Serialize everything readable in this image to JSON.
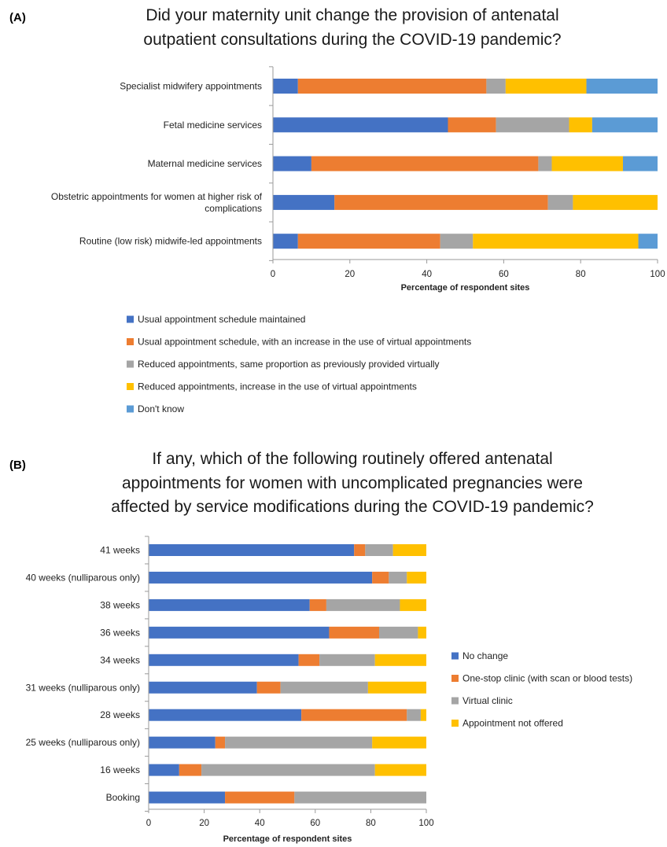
{
  "colors": {
    "blue": "#4472C4",
    "orange": "#ED7D31",
    "gray": "#A5A5A5",
    "yellow": "#FFC000",
    "lightblue": "#5B9BD5",
    "axis": "#9a9a9a"
  },
  "chart_data": [
    {
      "type": "bar",
      "orientation": "horizontal",
      "stacked": true,
      "panel": "(A)",
      "title": [
        "Did your maternity unit change the provision of antenatal",
        "outpatient consultations  during the COVID-19 pandemic?"
      ],
      "xlabel": "Percentage of respondent sites",
      "xlim": [
        0,
        100
      ],
      "xticks": [
        0,
        20,
        40,
        60,
        80,
        100
      ],
      "categories": [
        [
          "Specialist midwifery appointments"
        ],
        [
          "Fetal medicine services"
        ],
        [
          "Maternal medicine services"
        ],
        [
          "Obstetric appointments for women at higher risk of",
          "complications"
        ],
        [
          "Routine (low risk) midwife-led appointments"
        ]
      ],
      "series": [
        {
          "name": "Usual appointment schedule maintained",
          "color": "blue",
          "values": [
            6.5,
            45.5,
            10,
            16,
            6.5
          ]
        },
        {
          "name": "Usual appointment schedule, with an increase in the use of virtual appointments",
          "color": "orange",
          "values": [
            49,
            12.5,
            59,
            55.5,
            37
          ]
        },
        {
          "name": "Reduced appointments, same proportion as previously provided virtually",
          "color": "gray",
          "values": [
            5,
            19,
            3.5,
            6.5,
            8.5
          ]
        },
        {
          "name": "Reduced appointments, increase in the use of virtual appointments",
          "color": "yellow",
          "values": [
            21,
            6,
            18.5,
            22,
            43
          ]
        },
        {
          "name": "Don't know",
          "color": "lightblue",
          "values": [
            18.5,
            17,
            9,
            0,
            5
          ]
        }
      ],
      "legend_position": "bottom"
    },
    {
      "type": "bar",
      "orientation": "horizontal",
      "stacked": true,
      "panel": "(B)",
      "title": [
        "If any, which of the following routinely offered antenatal",
        "appointments for women with uncomplicated pregnancies were",
        "affected by service modifications during the COVID-19 pandemic?"
      ],
      "xlabel": "Percentage of respondent sites",
      "xlim": [
        0,
        100
      ],
      "xticks": [
        0,
        20,
        40,
        60,
        80,
        100
      ],
      "categories": [
        [
          "41 weeks"
        ],
        [
          "40 weeks (nulliparous only)"
        ],
        [
          "38 weeks"
        ],
        [
          "36 weeks"
        ],
        [
          "34 weeks"
        ],
        [
          "31 weeks (nulliparous only)"
        ],
        [
          "28 weeks"
        ],
        [
          "25 weeks (nulliparous only)"
        ],
        [
          "16 weeks"
        ],
        [
          "Booking"
        ]
      ],
      "series": [
        {
          "name": "No change",
          "color": "blue",
          "values": [
            74,
            80.5,
            58,
            65,
            54,
            39,
            55,
            24,
            11,
            27.5
          ]
        },
        {
          "name": "One-stop clinic (with scan or blood tests)",
          "color": "orange",
          "values": [
            4,
            6,
            6,
            18,
            7.5,
            8.5,
            38,
            3.5,
            8,
            25
          ]
        },
        {
          "name": "Virtual clinic",
          "color": "gray",
          "values": [
            10,
            6.5,
            26.5,
            14,
            20,
            31.5,
            5,
            53,
            62.5,
            47.5
          ]
        },
        {
          "name": "Appointment not offered",
          "color": "yellow",
          "values": [
            12,
            7,
            9.5,
            3,
            18.5,
            21,
            2,
            19.5,
            18.5,
            0
          ]
        }
      ],
      "legend_position": "right"
    }
  ]
}
